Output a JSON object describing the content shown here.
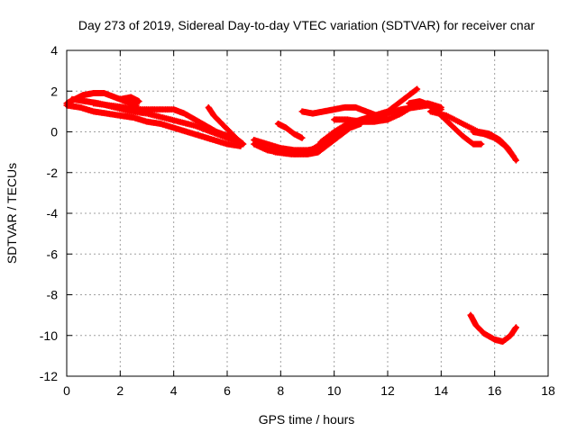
{
  "chart_data": {
    "type": "scatter",
    "title": "Day 273 of 2019, Sidereal Day-to-day VTEC variation (SDTVAR) for receiver cnar",
    "xlabel": "GPS time / hours",
    "ylabel": "SDTVAR / TECUs",
    "xlim": [
      0,
      18
    ],
    "ylim": [
      -12,
      4
    ],
    "xticks": [
      0,
      2,
      4,
      6,
      8,
      10,
      12,
      14,
      16,
      18
    ],
    "yticks": [
      4,
      2,
      0,
      -2,
      -4,
      -6,
      -8,
      -10,
      -12
    ],
    "grid": true,
    "marker": "plus",
    "series_color": "#ff0000",
    "traces": [
      [
        [
          0.0,
          1.4
        ],
        [
          0.3,
          1.6
        ],
        [
          0.6,
          1.8
        ],
        [
          1.0,
          1.9
        ],
        [
          1.4,
          1.9
        ],
        [
          1.8,
          1.7
        ],
        [
          2.2,
          1.5
        ],
        [
          2.6,
          1.3
        ]
      ],
      [
        [
          0.0,
          1.3
        ],
        [
          0.5,
          1.2
        ],
        [
          1.0,
          1.0
        ],
        [
          1.5,
          0.9
        ],
        [
          2.0,
          0.8
        ],
        [
          2.5,
          0.7
        ],
        [
          3.0,
          0.5
        ],
        [
          3.5,
          0.4
        ],
        [
          4.0,
          0.2
        ],
        [
          4.5,
          0.0
        ],
        [
          5.0,
          -0.2
        ],
        [
          5.5,
          -0.4
        ],
        [
          6.0,
          -0.6
        ],
        [
          6.5,
          -0.7
        ]
      ],
      [
        [
          0.2,
          1.6
        ],
        [
          0.7,
          1.5
        ],
        [
          1.2,
          1.4
        ],
        [
          1.8,
          1.2
        ],
        [
          2.4,
          1.0
        ],
        [
          3.0,
          0.9
        ],
        [
          3.6,
          0.7
        ],
        [
          4.2,
          0.5
        ],
        [
          4.8,
          0.3
        ],
        [
          5.4,
          0.0
        ],
        [
          6.0,
          -0.3
        ],
        [
          6.5,
          -0.5
        ]
      ],
      [
        [
          1.0,
          1.4
        ],
        [
          1.6,
          1.3
        ],
        [
          2.2,
          1.2
        ],
        [
          2.8,
          1.1
        ],
        [
          3.4,
          1.1
        ],
        [
          4.0,
          1.1
        ],
        [
          4.4,
          0.9
        ],
        [
          4.8,
          0.6
        ],
        [
          5.2,
          0.3
        ],
        [
          5.6,
          0.0
        ],
        [
          6.0,
          -0.2
        ],
        [
          6.4,
          -0.4
        ]
      ],
      [
        [
          2.0,
          1.6
        ],
        [
          2.4,
          1.7
        ],
        [
          2.7,
          1.5
        ]
      ],
      [
        [
          5.3,
          1.2
        ],
        [
          5.5,
          0.8
        ],
        [
          5.8,
          0.4
        ],
        [
          6.1,
          0.0
        ],
        [
          6.4,
          -0.4
        ],
        [
          6.6,
          -0.6
        ]
      ],
      [
        [
          7.0,
          -0.4
        ],
        [
          7.5,
          -0.6
        ],
        [
          8.0,
          -0.8
        ],
        [
          8.5,
          -0.9
        ],
        [
          9.0,
          -0.9
        ],
        [
          9.5,
          -0.8
        ]
      ],
      [
        [
          7.0,
          -0.6
        ],
        [
          7.5,
          -0.9
        ],
        [
          8.0,
          -1.0
        ],
        [
          8.5,
          -1.1
        ],
        [
          9.0,
          -1.1
        ],
        [
          9.4,
          -1.0
        ],
        [
          9.8,
          -0.6
        ],
        [
          10.2,
          -0.2
        ],
        [
          10.6,
          0.2
        ],
        [
          11.0,
          0.4
        ]
      ],
      [
        [
          7.2,
          -0.7
        ],
        [
          7.8,
          -1.0
        ],
        [
          8.4,
          -1.1
        ],
        [
          9.0,
          -1.0
        ],
        [
          9.5,
          -0.6
        ],
        [
          10.0,
          -0.2
        ],
        [
          10.5,
          0.2
        ],
        [
          11.0,
          0.5
        ],
        [
          11.5,
          0.7
        ],
        [
          12.0,
          0.9
        ],
        [
          12.5,
          1.1
        ],
        [
          13.0,
          1.2
        ],
        [
          13.5,
          1.3
        ],
        [
          14.0,
          1.1
        ]
      ],
      [
        [
          7.9,
          0.4
        ],
        [
          8.2,
          0.2
        ],
        [
          8.5,
          -0.1
        ],
        [
          8.8,
          -0.3
        ]
      ],
      [
        [
          8.8,
          1.0
        ],
        [
          9.2,
          0.9
        ],
        [
          9.6,
          1.0
        ],
        [
          10.0,
          1.1
        ],
        [
          10.4,
          1.2
        ],
        [
          10.8,
          1.2
        ],
        [
          11.2,
          1.0
        ],
        [
          11.6,
          0.8
        ],
        [
          12.0,
          0.6
        ]
      ],
      [
        [
          9.5,
          -0.5
        ],
        [
          10.0,
          0.0
        ],
        [
          10.5,
          0.4
        ],
        [
          11.0,
          0.6
        ],
        [
          11.5,
          0.8
        ],
        [
          12.0,
          1.0
        ],
        [
          12.4,
          1.4
        ],
        [
          12.8,
          1.8
        ],
        [
          13.1,
          2.1
        ]
      ],
      [
        [
          10.0,
          0.6
        ],
        [
          10.5,
          0.6
        ],
        [
          11.0,
          0.5
        ],
        [
          11.5,
          0.5
        ],
        [
          12.0,
          0.6
        ],
        [
          12.5,
          0.9
        ],
        [
          13.0,
          1.3
        ],
        [
          13.5,
          1.4
        ],
        [
          14.0,
          1.2
        ]
      ],
      [
        [
          12.8,
          1.4
        ],
        [
          13.2,
          1.5
        ],
        [
          13.6,
          1.3
        ],
        [
          14.0,
          0.8
        ],
        [
          14.4,
          0.3
        ],
        [
          14.8,
          -0.2
        ],
        [
          15.2,
          -0.6
        ],
        [
          15.5,
          -0.6
        ]
      ],
      [
        [
          13.6,
          1.0
        ],
        [
          14.2,
          0.8
        ],
        [
          14.8,
          0.4
        ],
        [
          15.4,
          0.0
        ],
        [
          15.8,
          -0.1
        ],
        [
          16.2,
          -0.4
        ],
        [
          16.5,
          -0.8
        ],
        [
          16.8,
          -1.4
        ]
      ],
      [
        [
          15.2,
          0.0
        ],
        [
          15.6,
          -0.1
        ],
        [
          16.0,
          -0.3
        ],
        [
          16.4,
          -0.7
        ],
        [
          16.7,
          -1.2
        ]
      ],
      [
        [
          15.1,
          -9.0
        ],
        [
          15.3,
          -9.5
        ],
        [
          15.6,
          -9.9
        ],
        [
          16.0,
          -10.2
        ],
        [
          16.3,
          -10.3
        ],
        [
          16.6,
          -10.0
        ],
        [
          16.8,
          -9.6
        ]
      ]
    ]
  }
}
